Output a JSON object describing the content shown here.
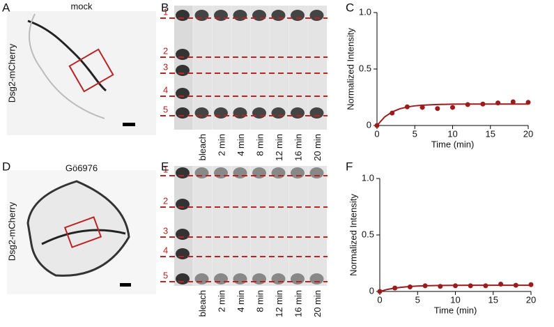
{
  "figure": {
    "panel_labels": [
      "A",
      "B",
      "C",
      "D",
      "E",
      "F"
    ],
    "rows": [
      {
        "condition": "mock",
        "ylabel": "Dsg2-mCherry",
        "kymo_lines": [
          "1",
          "2",
          "3",
          "4",
          "5"
        ],
        "kymo_timepoints": [
          "bleach",
          "2 min",
          "4 min",
          "8 min",
          "12 min",
          "16 min",
          "20 min"
        ]
      },
      {
        "condition": "Gö6976",
        "ylabel": "Dsg2-mCherry",
        "kymo_lines": [
          "1",
          "2",
          "3",
          "4",
          "5"
        ],
        "kymo_timepoints": [
          "bleach",
          "2 min",
          "4 min",
          "8 min",
          "12 min",
          "16 min",
          "20 min"
        ]
      }
    ]
  },
  "chart_data": [
    {
      "type": "scatter",
      "xlabel": "Time (min)",
      "ylabel": "Normalized Intensity",
      "xlim": [
        0,
        20
      ],
      "ylim": [
        0,
        1
      ],
      "xticks": [
        0,
        5,
        10,
        15,
        20
      ],
      "yticks": [
        0,
        0.5,
        {
          "value": 1,
          "label": "1.0"
        }
      ],
      "series": [
        {
          "color": "#9b1c1c",
          "marker": "dot",
          "x": [
            0,
            2,
            4,
            6,
            8,
            10,
            12,
            14,
            16,
            18,
            20
          ],
          "values": [
            0,
            0.11,
            0.165,
            0.16,
            0.15,
            0.16,
            0.185,
            0.19,
            0.2,
            0.21,
            0.205
          ]
        },
        {
          "color": "#9b1c1c",
          "marker": "line",
          "x": [
            0,
            1,
            2,
            3,
            4,
            5,
            6,
            8,
            10,
            12,
            14,
            16,
            18,
            20
          ],
          "values": [
            0,
            0.075,
            0.12,
            0.148,
            0.164,
            0.174,
            0.18,
            0.186,
            0.189,
            0.19,
            0.19,
            0.19,
            0.19,
            0.19
          ]
        }
      ]
    },
    {
      "type": "scatter",
      "xlabel": "Time (min)",
      "ylabel": "Normalized Intensity",
      "xlim": [
        0,
        20
      ],
      "ylim": [
        0,
        1
      ],
      "xticks": [
        0,
        5,
        10,
        15,
        20
      ],
      "yticks": [
        0,
        0.5,
        {
          "value": 1,
          "label": "1.0"
        }
      ],
      "series": [
        {
          "color": "#9b1c1c",
          "marker": "dot",
          "x": [
            0,
            2,
            4,
            6,
            8,
            10,
            12,
            14,
            16,
            18,
            20
          ],
          "values": [
            0,
            0.03,
            0.04,
            0.05,
            0.045,
            0.05,
            0.05,
            0.05,
            0.065,
            0.055,
            0.06
          ]
        },
        {
          "color": "#9b1c1c",
          "marker": "line",
          "x": [
            0,
            1,
            2,
            3,
            4,
            5,
            6,
            8,
            10,
            12,
            14,
            16,
            18,
            20
          ],
          "values": [
            0,
            0.018,
            0.03,
            0.038,
            0.044,
            0.048,
            0.05,
            0.053,
            0.054,
            0.055,
            0.055,
            0.055,
            0.055,
            0.055
          ]
        }
      ]
    }
  ]
}
